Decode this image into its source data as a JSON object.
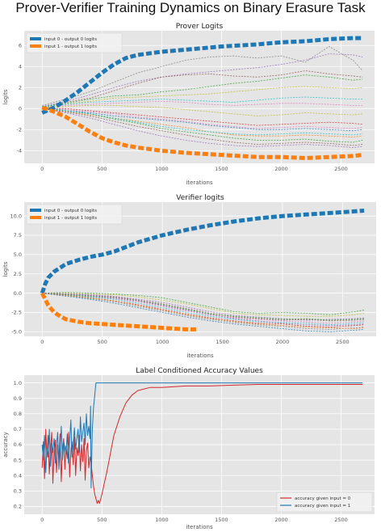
{
  "figure_title": "Prover-Verifier Training Dynamics on Binary Erasure Task",
  "chart_data": [
    {
      "type": "line",
      "title": "Prover Logits",
      "xlabel": "iterations",
      "ylabel": "logits",
      "xlim": [
        -150,
        2780
      ],
      "ylim": [
        -5.2,
        7.4
      ],
      "xticks": [
        0,
        500,
        1000,
        1500,
        2000,
        2500
      ],
      "yticks": [
        -4,
        -2,
        0,
        2,
        4,
        6
      ],
      "grid": true,
      "legend_position": "top-left",
      "highlight_series": [
        {
          "name": "input 0 - output 0 logits",
          "color": "#1f77b4",
          "x": [
            0,
            100,
            200,
            300,
            400,
            500,
            600,
            700,
            800,
            1000,
            1200,
            1500,
            1800,
            2000,
            2200,
            2400,
            2600,
            2680
          ],
          "y": [
            -0.4,
            0.1,
            0.8,
            1.6,
            2.5,
            3.4,
            4.2,
            4.8,
            5.1,
            5.4,
            5.6,
            5.9,
            6.1,
            6.3,
            6.4,
            6.6,
            6.7,
            6.7
          ]
        },
        {
          "name": "input 1 - output 1 logits",
          "color": "#ff7f0e",
          "x": [
            0,
            100,
            200,
            300,
            400,
            500,
            600,
            700,
            800,
            1000,
            1200,
            1500,
            1800,
            2000,
            2200,
            2400,
            2600,
            2680
          ],
          "y": [
            0.1,
            -0.3,
            -0.8,
            -1.5,
            -2.2,
            -2.8,
            -3.2,
            -3.5,
            -3.7,
            -4.0,
            -4.2,
            -4.4,
            -4.6,
            -4.6,
            -4.7,
            -4.6,
            -4.5,
            -4.4
          ]
        }
      ],
      "background_series_x": [
        0,
        200,
        400,
        600,
        800,
        1000,
        1200,
        1400,
        1600,
        1800,
        2000,
        2200,
        2400,
        2600,
        2680
      ],
      "background_series": [
        {
          "color": "#7f7f7f",
          "y": [
            0.3,
            0.9,
            1.6,
            2.5,
            3.4,
            4.0,
            4.6,
            4.9,
            5.0,
            4.8,
            5.0,
            4.4,
            5.9,
            4.6,
            3.6
          ]
        },
        {
          "color": "#9467bd",
          "y": [
            0.2,
            0.7,
            1.3,
            2.0,
            2.6,
            3.0,
            3.3,
            3.5,
            3.7,
            3.9,
            4.2,
            4.6,
            5.2,
            5.1,
            4.9
          ]
        },
        {
          "color": "#8c564b",
          "y": [
            0.1,
            0.6,
            1.0,
            1.7,
            2.4,
            3.0,
            3.2,
            3.3,
            3.1,
            3.0,
            3.2,
            3.6,
            3.3,
            3.1,
            3.0
          ]
        },
        {
          "color": "#2ca02c",
          "y": [
            0.2,
            0.5,
            0.9,
            1.2,
            1.3,
            1.6,
            1.8,
            2.1,
            2.4,
            2.6,
            2.9,
            3.2,
            3.0,
            2.7,
            2.8
          ]
        },
        {
          "color": "#bcbd22",
          "y": [
            0.1,
            0.4,
            0.7,
            1.0,
            1.1,
            1.2,
            1.3,
            1.4,
            1.6,
            1.8,
            2.0,
            2.1,
            2.0,
            1.9,
            2.0
          ]
        },
        {
          "color": "#17becf",
          "y": [
            0.2,
            0.4,
            0.6,
            0.7,
            0.8,
            0.9,
            0.8,
            0.7,
            0.6,
            0.8,
            1.0,
            1.1,
            1.0,
            0.9,
            0.9
          ]
        },
        {
          "color": "#e377c2",
          "y": [
            0.1,
            0.3,
            0.4,
            0.5,
            0.6,
            0.7,
            0.6,
            0.4,
            0.3,
            0.4,
            0.5,
            0.5,
            0.4,
            0.3,
            0.3
          ]
        },
        {
          "color": "#d62728",
          "y": [
            0.0,
            0.0,
            -0.2,
            -0.4,
            -0.6,
            -0.8,
            -1.0,
            -1.2,
            -1.4,
            -1.6,
            -1.5,
            -1.4,
            -1.3,
            -1.4,
            -1.5
          ]
        },
        {
          "color": "#1f77b4",
          "y": [
            0.1,
            -0.2,
            -0.4,
            -0.7,
            -0.9,
            -1.1,
            -1.3,
            -1.6,
            -1.8,
            -2.0,
            -2.0,
            -1.9,
            -2.0,
            -2.1,
            -2.0
          ]
        },
        {
          "color": "#ff7f0e",
          "y": [
            0.0,
            -0.3,
            -0.6,
            -0.9,
            -1.2,
            -1.5,
            -1.8,
            -2.2,
            -2.5,
            -2.6,
            -2.6,
            -2.5,
            -2.6,
            -2.7,
            -2.6
          ]
        },
        {
          "color": "#2ca02c",
          "y": [
            0.1,
            -0.2,
            -0.5,
            -1.0,
            -1.4,
            -1.9,
            -2.2,
            -2.5,
            -2.8,
            -3.0,
            -3.0,
            -2.9,
            -3.1,
            -3.2,
            -3.0
          ]
        },
        {
          "color": "#9467bd",
          "y": [
            0.0,
            -0.4,
            -0.9,
            -1.5,
            -2.1,
            -2.6,
            -3.0,
            -3.3,
            -3.5,
            -3.6,
            -3.5,
            -3.4,
            -3.5,
            -3.7,
            -3.6
          ]
        },
        {
          "color": "#8c564b",
          "y": [
            0.0,
            -0.3,
            -0.7,
            -1.2,
            -1.7,
            -2.1,
            -2.5,
            -2.9,
            -3.2,
            -3.4,
            -3.3,
            -3.2,
            -3.3,
            -3.5,
            -3.4
          ]
        },
        {
          "color": "#e377c2",
          "y": [
            0.1,
            -0.1,
            -0.3,
            -0.5,
            -0.8,
            -1.0,
            -1.2,
            -1.5,
            -1.7,
            -1.9,
            -1.8,
            -1.7,
            -1.8,
            -1.9,
            -1.8
          ]
        },
        {
          "color": "#17becf",
          "y": [
            0.0,
            -0.2,
            -0.5,
            -0.9,
            -1.3,
            -1.7,
            -2.0,
            -2.2,
            -2.4,
            -2.5,
            -2.4,
            -2.3,
            -2.4,
            -2.5,
            -2.4
          ]
        },
        {
          "color": "#bcbd22",
          "y": [
            0.1,
            0.2,
            0.3,
            0.3,
            0.2,
            0.1,
            -0.1,
            -0.3,
            -0.5,
            -0.7,
            -0.6,
            -0.4,
            -0.5,
            -0.6,
            -0.5
          ]
        }
      ]
    },
    {
      "type": "line",
      "title": "Verifier logits",
      "xlabel": "iterations",
      "ylabel": "logits",
      "xlim": [
        -150,
        2780
      ],
      "ylim": [
        -5.6,
        11.8
      ],
      "xticks": [
        0,
        500,
        1000,
        1500,
        2000,
        2500
      ],
      "yticks": [
        -5.0,
        -2.5,
        0.0,
        2.5,
        5.0,
        7.5,
        10.0
      ],
      "ytick_labels": [
        "-5.0",
        "-2.5",
        "0.0",
        "2.5",
        "5.0",
        "7.5",
        "10.0"
      ],
      "grid": true,
      "legend_position": "top-left",
      "highlight_series": [
        {
          "name": "input 0 - output 0 logits",
          "color": "#1f77b4",
          "x": [
            0,
            25,
            50,
            100,
            150,
            200,
            300,
            400,
            500,
            600,
            700,
            800,
            1000,
            1200,
            1400,
            1600,
            1800,
            2000,
            2200,
            2400,
            2600,
            2680
          ],
          "y": [
            0.0,
            1.2,
            2.0,
            2.8,
            3.3,
            3.8,
            4.3,
            4.7,
            5.0,
            5.4,
            6.0,
            6.6,
            7.5,
            8.2,
            8.8,
            9.3,
            9.7,
            10.0,
            10.2,
            10.4,
            10.6,
            10.7
          ]
        },
        {
          "name": "input 1 - output 1 logits",
          "color": "#ff7f0e",
          "x": [
            0,
            25,
            50,
            100,
            150,
            200,
            300,
            400,
            500,
            600,
            800,
            1000,
            1100,
            1200,
            1300
          ],
          "y": [
            0.0,
            -0.8,
            -1.6,
            -2.5,
            -3.0,
            -3.4,
            -3.7,
            -3.9,
            -4.0,
            -4.1,
            -4.3,
            -4.5,
            -4.6,
            -4.7,
            -4.7
          ]
        }
      ],
      "background_series_x": [
        0,
        200,
        400,
        600,
        800,
        1000,
        1200,
        1400,
        1600,
        1800,
        2000,
        2200,
        2400,
        2600,
        2680
      ],
      "background_series": [
        {
          "color": "#2ca02c",
          "y": [
            0.0,
            0.1,
            0.0,
            -0.1,
            -0.3,
            -0.6,
            -1.2,
            -1.8,
            -2.4,
            -2.6,
            -2.5,
            -2.6,
            -2.8,
            -2.4,
            -2.2
          ]
        },
        {
          "color": "#bcbd22",
          "y": [
            0.0,
            0.0,
            -0.1,
            -0.2,
            -0.5,
            -0.9,
            -1.4,
            -2.0,
            -2.6,
            -2.8,
            -2.9,
            -3.0,
            -3.0,
            -2.8,
            -2.6
          ]
        },
        {
          "color": "#9467bd",
          "y": [
            0.0,
            -0.1,
            -0.2,
            -0.4,
            -0.8,
            -1.2,
            -1.8,
            -2.4,
            -2.9,
            -3.1,
            -3.3,
            -3.5,
            -3.4,
            -3.3,
            -3.2
          ]
        },
        {
          "color": "#8c564b",
          "y": [
            0.0,
            -0.1,
            -0.3,
            -0.5,
            -0.9,
            -1.4,
            -2.0,
            -2.6,
            -3.1,
            -3.3,
            -3.5,
            -3.4,
            -3.6,
            -3.5,
            -3.4
          ]
        },
        {
          "color": "#e377c2",
          "y": [
            0.0,
            -0.2,
            -0.4,
            -0.7,
            -1.1,
            -1.7,
            -2.3,
            -2.8,
            -3.2,
            -3.4,
            -3.6,
            -3.7,
            -3.9,
            -3.7,
            -3.6
          ]
        },
        {
          "color": "#17becf",
          "y": [
            0.0,
            -0.2,
            -0.5,
            -0.8,
            -1.3,
            -1.9,
            -2.5,
            -3.0,
            -3.4,
            -3.7,
            -3.8,
            -3.9,
            -4.1,
            -3.9,
            -3.8
          ]
        },
        {
          "color": "#d62728",
          "y": [
            0.0,
            -0.3,
            -0.6,
            -1.0,
            -1.5,
            -2.1,
            -2.7,
            -3.2,
            -3.6,
            -3.9,
            -4.0,
            -4.3,
            -4.4,
            -4.2,
            -4.1
          ]
        },
        {
          "color": "#7f7f7f",
          "y": [
            0.0,
            -0.3,
            -0.7,
            -1.1,
            -1.7,
            -2.3,
            -2.9,
            -3.4,
            -3.8,
            -4.1,
            -4.3,
            -4.6,
            -4.7,
            -4.5,
            -4.4
          ]
        },
        {
          "color": "#1f77b4",
          "y": [
            0.0,
            -0.4,
            -0.8,
            -1.3,
            -1.9,
            -2.5,
            -3.1,
            -3.6,
            -4.0,
            -4.3,
            -4.6,
            -4.9,
            -5.0,
            -4.8,
            -4.7
          ]
        },
        {
          "color": "#ff7f0e",
          "y": [
            0.0,
            -0.3,
            -0.6,
            -1.0,
            -1.6,
            -2.2,
            -2.8,
            -3.3,
            -3.7,
            -4.0,
            -4.2,
            -4.4,
            -4.5,
            -4.6,
            -4.5
          ]
        },
        {
          "color": "#2ca02c",
          "y": [
            0.0,
            -0.2,
            -0.4,
            -0.6,
            -1.0,
            -1.5,
            -2.1,
            -2.7,
            -3.0,
            -3.2,
            -3.4,
            -3.3,
            -3.5,
            -3.4,
            -3.3
          ]
        },
        {
          "color": "#9467bd",
          "y": [
            0.0,
            -0.1,
            -0.3,
            -0.6,
            -1.0,
            -1.6,
            -2.2,
            -2.8,
            -3.3,
            -3.6,
            -3.9,
            -4.1,
            -4.2,
            -4.1,
            -4.0
          ]
        }
      ]
    },
    {
      "type": "line",
      "title": "Label Conditioned Accuracy Values",
      "xlabel": "iterations",
      "ylabel": "accuracy",
      "xlim": [
        -150,
        2780
      ],
      "ylim": [
        0.15,
        1.05
      ],
      "xticks": [
        0,
        500,
        1000,
        1500,
        2000,
        2500
      ],
      "yticks": [
        0.2,
        0.3,
        0.4,
        0.5,
        0.6,
        0.7,
        0.8,
        0.9,
        1.0
      ],
      "ytick_labels": [
        "0.2",
        "0.3",
        "0.4",
        "0.5",
        "0.6",
        "0.7",
        "0.8",
        "0.9",
        "1.0"
      ],
      "grid": true,
      "legend_position": "lower-right",
      "series": [
        {
          "name": "accuracy given input = 0",
          "color": "#d62728",
          "x": [
            0,
            10,
            20,
            30,
            40,
            50,
            60,
            70,
            80,
            90,
            100,
            110,
            120,
            130,
            140,
            150,
            160,
            170,
            180,
            190,
            200,
            210,
            220,
            230,
            240,
            250,
            260,
            270,
            280,
            290,
            300,
            310,
            320,
            330,
            340,
            350,
            360,
            370,
            380,
            390,
            400,
            410,
            420,
            430,
            440,
            450,
            460,
            470,
            480,
            500,
            520,
            540,
            560,
            580,
            600,
            650,
            700,
            750,
            800,
            900,
            1000,
            1200,
            1400,
            1600,
            1800,
            2000,
            2200,
            2400,
            2600,
            2680
          ],
          "y": [
            0.45,
            0.62,
            0.38,
            0.7,
            0.52,
            0.66,
            0.41,
            0.58,
            0.68,
            0.35,
            0.55,
            0.63,
            0.42,
            0.6,
            0.5,
            0.67,
            0.36,
            0.57,
            0.64,
            0.44,
            0.59,
            0.51,
            0.68,
            0.39,
            0.56,
            0.62,
            0.47,
            0.65,
            0.4,
            0.58,
            0.53,
            0.66,
            0.43,
            0.6,
            0.49,
            0.64,
            0.37,
            0.56,
            0.61,
            0.45,
            0.52,
            0.48,
            0.4,
            0.33,
            0.28,
            0.25,
            0.22,
            0.24,
            0.22,
            0.28,
            0.35,
            0.42,
            0.5,
            0.58,
            0.66,
            0.78,
            0.87,
            0.92,
            0.95,
            0.97,
            0.97,
            0.98,
            0.98,
            0.985,
            0.99,
            0.99,
            0.99,
            0.99,
            0.99,
            0.99
          ]
        },
        {
          "name": "accuracy given input = 1",
          "color": "#1f77b4",
          "x": [
            0,
            10,
            20,
            30,
            40,
            50,
            60,
            70,
            80,
            90,
            100,
            110,
            120,
            130,
            140,
            150,
            160,
            170,
            180,
            190,
            200,
            210,
            220,
            230,
            240,
            250,
            260,
            270,
            280,
            290,
            300,
            310,
            320,
            330,
            340,
            350,
            360,
            370,
            380,
            390,
            400,
            405,
            410,
            420,
            430,
            440,
            450,
            2680
          ],
          "y": [
            0.6,
            0.5,
            0.66,
            0.42,
            0.58,
            0.52,
            0.7,
            0.46,
            0.61,
            0.55,
            0.64,
            0.48,
            0.6,
            0.68,
            0.44,
            0.56,
            0.72,
            0.5,
            0.62,
            0.58,
            0.54,
            0.67,
            0.48,
            0.63,
            0.76,
            0.52,
            0.6,
            0.71,
            0.57,
            0.64,
            0.7,
            0.55,
            0.78,
            0.62,
            0.68,
            0.74,
            0.6,
            0.8,
            0.66,
            0.72,
            0.64,
            0.85,
            0.32,
            0.7,
            0.84,
            0.92,
            1.0,
            1.0
          ]
        }
      ]
    }
  ]
}
